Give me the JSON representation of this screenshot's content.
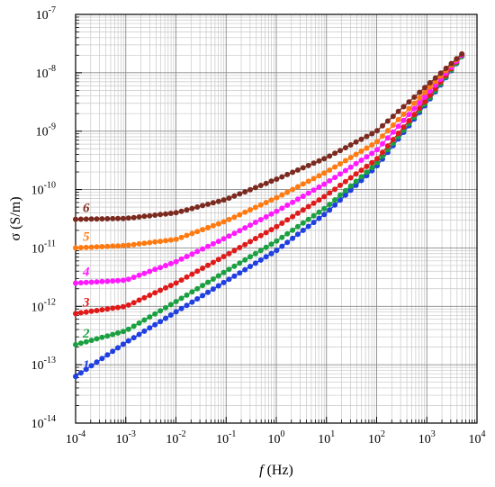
{
  "chart_data": {
    "type": "scatter",
    "xscale": "log",
    "yscale": "log",
    "xlim": [
      0.0001,
      10000
    ],
    "ylim": [
      1e-14,
      1e-07
    ],
    "grid": true,
    "xlabel": {
      "italic": "f",
      "rest": " (Hz)"
    },
    "ylabel": "σ (S/m)",
    "xticks": [
      {
        "base": "10",
        "exp": "-4",
        "value": 0.0001
      },
      {
        "base": "10",
        "exp": "-3",
        "value": 0.001
      },
      {
        "base": "10",
        "exp": "-2",
        "value": 0.01
      },
      {
        "base": "10",
        "exp": "-1",
        "value": 0.1
      },
      {
        "base": "10",
        "exp": "0",
        "value": 1
      },
      {
        "base": "10",
        "exp": "1",
        "value": 10
      },
      {
        "base": "10",
        "exp": "2",
        "value": 100
      },
      {
        "base": "10",
        "exp": "3",
        "value": 1000
      },
      {
        "base": "10",
        "exp": "4",
        "value": 10000
      }
    ],
    "yticks": [
      {
        "base": "10",
        "exp": "-14",
        "value": 1e-14
      },
      {
        "base": "10",
        "exp": "-13",
        "value": 1e-13
      },
      {
        "base": "10",
        "exp": "-12",
        "value": 1e-12
      },
      {
        "base": "10",
        "exp": "-11",
        "value": 1e-11
      },
      {
        "base": "10",
        "exp": "-10",
        "value": 1e-10
      },
      {
        "base": "10",
        "exp": "-9",
        "value": 1e-09
      },
      {
        "base": "10",
        "exp": "-8",
        "value": 1e-08
      },
      {
        "base": "10",
        "exp": "-7",
        "value": 1e-07
      }
    ],
    "x": [
      0.0001,
      0.001,
      0.01,
      0.1,
      1,
      10,
      100,
      1000,
      5000
    ],
    "series": [
      {
        "name": "1",
        "color": "#1f3fe0",
        "values": [
          6.3e-14,
          2.4e-13,
          8e-13,
          2.7e-12,
          9e-12,
          4e-11,
          2.5e-10,
          3e-09,
          1.9e-08
        ]
      },
      {
        "name": "2",
        "color": "#1aa040",
        "values": [
          2.2e-13,
          3.8e-13,
          1.2e-12,
          4e-12,
          1.3e-11,
          5e-11,
          2.8e-10,
          3.2e-09,
          1.9e-08
        ]
      },
      {
        "name": "3",
        "color": "#e01a1a",
        "values": [
          7.5e-13,
          1e-12,
          2.5e-12,
          7.5e-12,
          2.3e-11,
          8e-11,
          3.3e-10,
          3.5e-09,
          2e-08
        ]
      },
      {
        "name": "4",
        "color": "#ff1aff",
        "values": [
          2.5e-12,
          2.8e-12,
          5.8e-12,
          1.5e-11,
          4.2e-11,
          1.3e-10,
          4.7e-10,
          4.2e-09,
          2e-08
        ]
      },
      {
        "name": "5",
        "color": "#ff7a10",
        "values": [
          1e-11,
          1.1e-11,
          1.4e-11,
          2.9e-11,
          7.2e-11,
          2e-10,
          6.5e-10,
          5e-09,
          2.1e-08
        ]
      },
      {
        "name": "6",
        "color": "#7b2a20",
        "values": [
          3.1e-11,
          3.2e-11,
          4e-11,
          6.8e-11,
          1.5e-10,
          3.5e-10,
          1e-09,
          6e-09,
          2.1e-08
        ]
      }
    ]
  }
}
